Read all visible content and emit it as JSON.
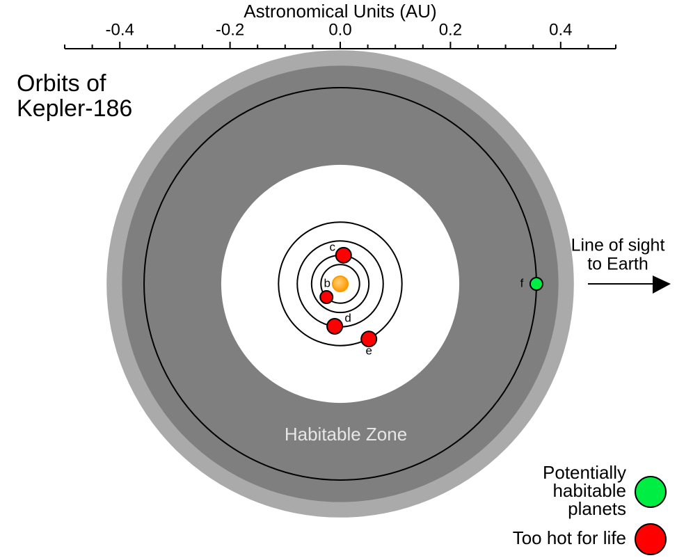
{
  "chart_data": {
    "type": "orbits",
    "title": [
      "Orbits of",
      "Kepler-186"
    ],
    "xlabel": "Astronomical Units (AU)",
    "xlim": [
      -0.5,
      0.5
    ],
    "xticks": [
      -0.4,
      -0.2,
      {
        "value": 0,
        "label": "0.0"
      },
      0.2,
      0.4
    ],
    "xminor_ticks": [
      -0.5,
      -0.45,
      -0.35,
      -0.3,
      -0.25,
      -0.15,
      -0.1,
      -0.05,
      0.05,
      0.1,
      0.15,
      0.25,
      0.3,
      0.35,
      0.45,
      0.5
    ],
    "zone": {
      "label": "Habitable Zone",
      "outer_optimistic": 0.424,
      "outer": 0.396,
      "inner": 0.216
    },
    "star_color": "#ff9900",
    "planets": [
      {
        "name": "b",
        "orbit": 0.035,
        "x": -0.025,
        "y": -0.024,
        "color": "#ff0000"
      },
      {
        "name": "c",
        "orbit": 0.052,
        "x": 0.006,
        "y": 0.052,
        "color": "#ff0000"
      },
      {
        "name": "d",
        "orbit": 0.078,
        "x": -0.01,
        "y": -0.077,
        "color": "#ff0000"
      },
      {
        "name": "e",
        "orbit": 0.112,
        "x": 0.052,
        "y": -0.1,
        "color": "#ff0000"
      },
      {
        "name": "f",
        "orbit": 0.356,
        "x": 0.356,
        "y": 0,
        "color": "#00ee44"
      }
    ],
    "sightline": [
      "Line of sight",
      "to Earth"
    ],
    "legend": [
      {
        "label": [
          "Potentially",
          "habitable",
          "planets"
        ],
        "color": "#00ee44"
      },
      {
        "label": [
          "Too hot for life"
        ],
        "color": "#ff0000"
      }
    ]
  }
}
